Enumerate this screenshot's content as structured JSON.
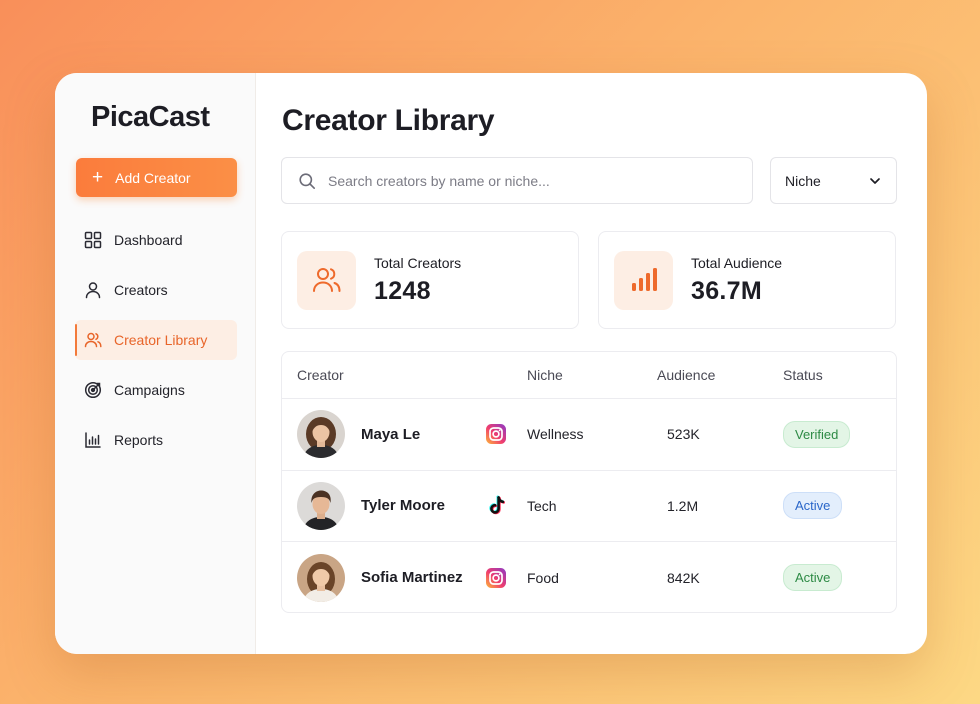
{
  "app": {
    "name": "PicaCast"
  },
  "sidebar": {
    "add_button": {
      "label": "Add Creator",
      "icon": "plus-icon"
    },
    "items": [
      {
        "label": "Dashboard",
        "icon": "grid-icon",
        "active": false
      },
      {
        "label": "Creators",
        "icon": "user-icon",
        "active": false
      },
      {
        "label": "Creator Library",
        "icon": "users-icon",
        "active": true
      },
      {
        "label": "Campaigns",
        "icon": "target-icon",
        "active": false
      },
      {
        "label": "Reports",
        "icon": "bar-chart-icon",
        "active": false
      }
    ]
  },
  "main": {
    "title": "Creator Library",
    "search": {
      "placeholder": "Search creators by name or niche...",
      "value": ""
    },
    "filter": {
      "selected": "Niche"
    },
    "stats": [
      {
        "label": "Total Creators",
        "value": "1248",
        "icon": "users-icon"
      },
      {
        "label": "Total Audience",
        "value": "36.7M",
        "icon": "signal-bars-icon"
      }
    ],
    "table": {
      "columns": [
        "Creator",
        "Niche",
        "Audience",
        "Status"
      ],
      "rows": [
        {
          "name": "Maya Le",
          "platform": "instagram-icon",
          "niche": "Wellness",
          "audience": "523K",
          "status": "Verified",
          "status_color": "green"
        },
        {
          "name": "Tyler Moore",
          "platform": "tiktok-icon",
          "niche": "Tech",
          "audience": "1.2M",
          "status": "Active",
          "status_color": "blue"
        },
        {
          "name": "Sofia Martinez",
          "platform": "instagram-icon",
          "niche": "Food",
          "audience": "842K",
          "status": "Active",
          "status_color": "green"
        }
      ]
    }
  },
  "colors": {
    "accent": "#f97c3c",
    "accent_light": "#fdeee4",
    "text": "#1d1d24",
    "verified_green": "#2d8a45",
    "active_blue": "#2a66c9"
  }
}
